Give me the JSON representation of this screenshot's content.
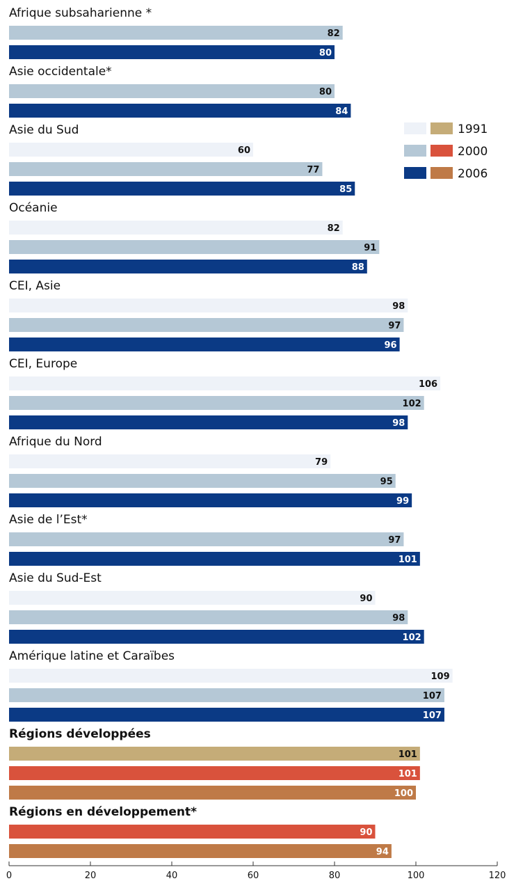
{
  "chart_data": {
    "type": "bar",
    "orientation": "horizontal",
    "xlim": [
      0,
      120
    ],
    "x_ticks": [
      0,
      20,
      40,
      60,
      80,
      100,
      120
    ],
    "legend": {
      "placement": "top-right",
      "entries": [
        {
          "label": "1991",
          "colors": [
            "#eef2f8",
            "#c5ac78"
          ]
        },
        {
          "label": "2000",
          "colors": [
            "#b5c8d6",
            "#d9523c"
          ]
        },
        {
          "label": "2006",
          "colors": [
            "#0b3a85",
            "#bf7a47"
          ]
        }
      ]
    },
    "colors": {
      "light": "#eef2f8",
      "mid": "#b5c8d6",
      "dark": "#0b3a85",
      "dev1991": "#c5ac78",
      "dev2000": "#d9523c",
      "dev2006": "#bf7a47"
    },
    "groups": [
      {
        "label": "Afrique subsaharienne *",
        "bold": false,
        "bars": [
          {
            "year": "2000",
            "value": 82,
            "color": "mid"
          },
          {
            "year": "2006",
            "value": 80,
            "color": "dark"
          }
        ]
      },
      {
        "label": "Asie occidentale*",
        "bold": false,
        "bars": [
          {
            "year": "2000",
            "value": 80,
            "color": "mid"
          },
          {
            "year": "2006",
            "value": 84,
            "color": "dark"
          }
        ]
      },
      {
        "label": "Asie du Sud",
        "bold": false,
        "bars": [
          {
            "year": "1991",
            "value": 60,
            "color": "light"
          },
          {
            "year": "2000",
            "value": 77,
            "color": "mid"
          },
          {
            "year": "2006",
            "value": 85,
            "color": "dark"
          }
        ]
      },
      {
        "label": "Océanie",
        "bold": false,
        "bars": [
          {
            "year": "1991",
            "value": 82,
            "color": "light"
          },
          {
            "year": "2000",
            "value": 91,
            "color": "mid"
          },
          {
            "year": "2006",
            "value": 88,
            "color": "dark"
          }
        ]
      },
      {
        "label": "CEI, Asie",
        "bold": false,
        "bars": [
          {
            "year": "1991",
            "value": 98,
            "color": "light"
          },
          {
            "year": "2000",
            "value": 97,
            "color": "mid"
          },
          {
            "year": "2006",
            "value": 96,
            "color": "dark"
          }
        ]
      },
      {
        "label": "CEI, Europe",
        "bold": false,
        "bars": [
          {
            "year": "1991",
            "value": 106,
            "color": "light"
          },
          {
            "year": "2000",
            "value": 102,
            "color": "mid"
          },
          {
            "year": "2006",
            "value": 98,
            "color": "dark"
          }
        ]
      },
      {
        "label": "Afrique du Nord",
        "bold": false,
        "bars": [
          {
            "year": "1991",
            "value": 79,
            "color": "light"
          },
          {
            "year": "2000",
            "value": 95,
            "color": "mid"
          },
          {
            "year": "2006",
            "value": 99,
            "color": "dark"
          }
        ]
      },
      {
        "label": "Asie de l’Est*",
        "bold": false,
        "bars": [
          {
            "year": "2000",
            "value": 97,
            "color": "mid"
          },
          {
            "year": "2006",
            "value": 101,
            "color": "dark"
          }
        ]
      },
      {
        "label": "Asie du Sud-Est",
        "bold": false,
        "bars": [
          {
            "year": "1991",
            "value": 90,
            "color": "light"
          },
          {
            "year": "2000",
            "value": 98,
            "color": "mid"
          },
          {
            "year": "2006",
            "value": 102,
            "color": "dark"
          }
        ]
      },
      {
        "label": "Amérique latine et Caraïbes",
        "bold": false,
        "bars": [
          {
            "year": "1991",
            "value": 109,
            "color": "light"
          },
          {
            "year": "2000",
            "value": 107,
            "color": "mid"
          },
          {
            "year": "2006",
            "value": 107,
            "color": "dark"
          }
        ]
      },
      {
        "label": "Régions développées",
        "bold": true,
        "bars": [
          {
            "year": "1991",
            "value": 101,
            "color": "dev1991"
          },
          {
            "year": "2000",
            "value": 101,
            "color": "dev2000"
          },
          {
            "year": "2006",
            "value": 100,
            "color": "dev2006"
          }
        ]
      },
      {
        "label": "Régions  en développement*",
        "bold": true,
        "bars": [
          {
            "year": "2000",
            "value": 90,
            "color": "dev2000"
          },
          {
            "year": "2006",
            "value": 94,
            "color": "dev2006"
          }
        ]
      }
    ]
  }
}
